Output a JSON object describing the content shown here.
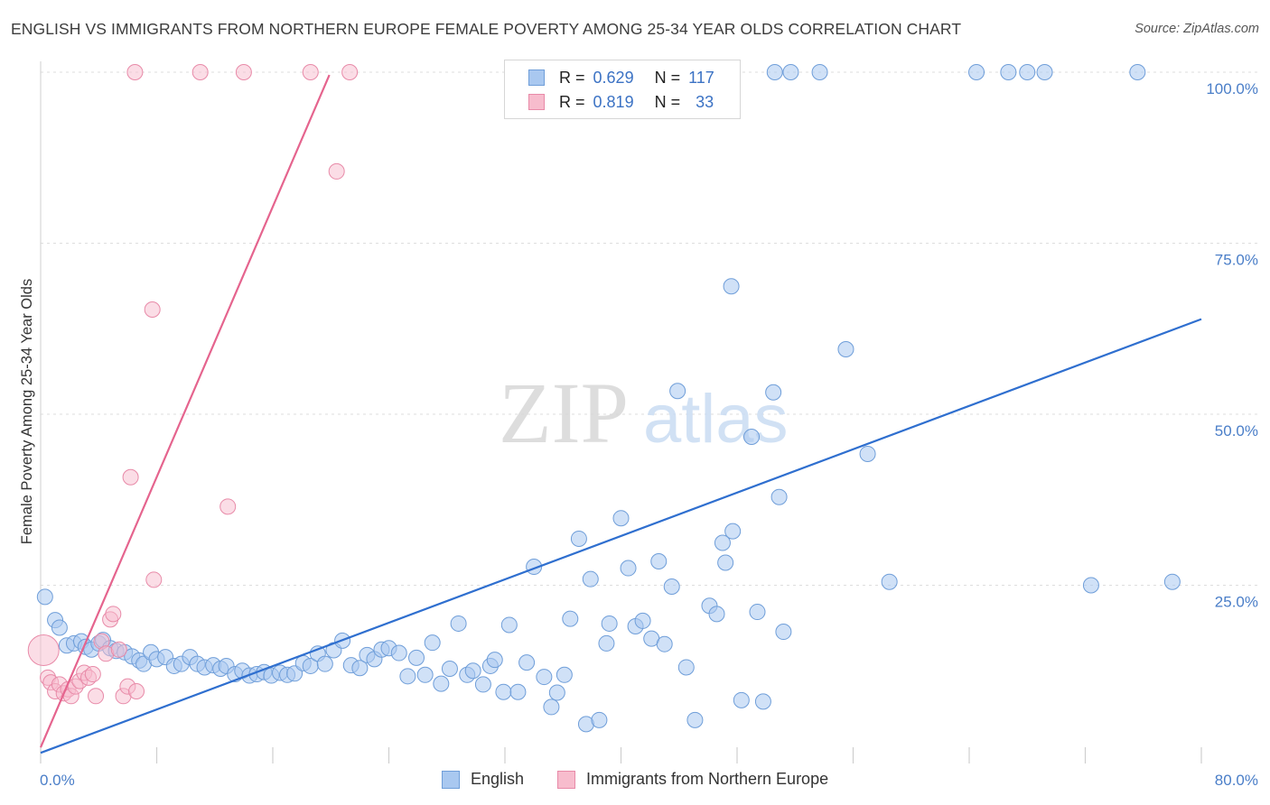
{
  "title": "ENGLISH VS IMMIGRANTS FROM NORTHERN EUROPE FEMALE POVERTY AMONG 25-34 YEAR OLDS CORRELATION CHART",
  "source": "Source: ZipAtlas.com",
  "watermark": {
    "zip": "ZIP",
    "atlas": "atlas"
  },
  "legend": {
    "rows": [
      {
        "r_label": "R =",
        "r_value": "0.629",
        "n_label": "N =",
        "n_value": "117"
      },
      {
        "r_label": "R =",
        "r_value": "0.819",
        "n_label": "N =",
        "n_value": "33"
      }
    ]
  },
  "bottom_legend": {
    "english": "English",
    "immigrants": "Immigrants from Northern Europe"
  },
  "colors": {
    "blue_fill": "#a9c8f0",
    "blue_line": "#2f6fcf",
    "pink_fill": "#f7bccd",
    "pink_line": "#e5648e",
    "tick": "#4a7ec8"
  },
  "chart_data": {
    "type": "scatter",
    "ylabel": "Female Poverty Among 25-34 Year Olds",
    "xlim": [
      0,
      80
    ],
    "ylim": [
      0,
      100
    ],
    "x_tick_labels": [
      "0.0%",
      "80.0%"
    ],
    "y_ticks": [
      25,
      50,
      75,
      100
    ],
    "y_tick_labels": [
      "25.0%",
      "50.0%",
      "75.0%",
      "100.0%"
    ],
    "series": [
      {
        "name": "English",
        "color": "#a9c8f0",
        "trend": {
          "x": [
            0,
            80
          ],
          "y": [
            0.5,
            63.9
          ]
        },
        "points": [
          [
            0.3,
            23.3
          ],
          [
            1.0,
            19.9
          ],
          [
            1.3,
            18.8
          ],
          [
            1.8,
            16.2
          ],
          [
            2.3,
            16.5
          ],
          [
            2.8,
            16.8
          ],
          [
            3.1,
            16.0
          ],
          [
            3.5,
            15.6
          ],
          [
            4.0,
            16.5
          ],
          [
            4.3,
            17.0
          ],
          [
            4.8,
            15.8
          ],
          [
            5.2,
            15.4
          ],
          [
            5.8,
            15.2
          ],
          [
            6.3,
            14.6
          ],
          [
            6.8,
            14.0
          ],
          [
            7.1,
            13.5
          ],
          [
            7.6,
            15.2
          ],
          [
            8.0,
            14.2
          ],
          [
            8.6,
            14.5
          ],
          [
            9.2,
            13.2
          ],
          [
            9.7,
            13.5
          ],
          [
            10.3,
            14.5
          ],
          [
            10.8,
            13.5
          ],
          [
            11.3,
            13.0
          ],
          [
            11.9,
            13.3
          ],
          [
            12.4,
            12.8
          ],
          [
            12.8,
            13.2
          ],
          [
            13.4,
            12.0
          ],
          [
            13.9,
            12.5
          ],
          [
            14.4,
            11.8
          ],
          [
            14.9,
            12.0
          ],
          [
            15.4,
            12.3
          ],
          [
            15.9,
            11.8
          ],
          [
            16.5,
            12.2
          ],
          [
            17.0,
            11.9
          ],
          [
            17.5,
            12.1
          ],
          [
            18.1,
            13.6
          ],
          [
            18.6,
            13.2
          ],
          [
            19.1,
            15.0
          ],
          [
            19.6,
            13.5
          ],
          [
            20.2,
            15.5
          ],
          [
            20.8,
            16.9
          ],
          [
            21.4,
            13.3
          ],
          [
            22.0,
            12.9
          ],
          [
            22.5,
            14.8
          ],
          [
            23.0,
            14.2
          ],
          [
            23.5,
            15.6
          ],
          [
            24.0,
            15.8
          ],
          [
            24.7,
            15.1
          ],
          [
            25.3,
            11.7
          ],
          [
            25.9,
            14.4
          ],
          [
            26.5,
            11.9
          ],
          [
            27.0,
            16.6
          ],
          [
            27.6,
            10.6
          ],
          [
            28.2,
            12.8
          ],
          [
            28.8,
            19.4
          ],
          [
            29.4,
            11.9
          ],
          [
            29.8,
            12.5
          ],
          [
            30.5,
            10.5
          ],
          [
            31.0,
            13.2
          ],
          [
            31.3,
            14.1
          ],
          [
            31.9,
            9.4
          ],
          [
            32.3,
            19.2
          ],
          [
            32.9,
            9.4
          ],
          [
            33.5,
            13.7
          ],
          [
            34.0,
            27.7
          ],
          [
            34.7,
            11.6
          ],
          [
            35.2,
            7.2
          ],
          [
            35.6,
            9.3
          ],
          [
            36.1,
            11.9
          ],
          [
            36.5,
            20.1
          ],
          [
            37.1,
            31.8
          ],
          [
            37.6,
            4.7
          ],
          [
            37.9,
            25.9
          ],
          [
            38.5,
            5.3
          ],
          [
            39.0,
            16.5
          ],
          [
            39.2,
            19.4
          ],
          [
            40.0,
            34.8
          ],
          [
            40.5,
            27.5
          ],
          [
            41.0,
            19.0
          ],
          [
            41.5,
            19.8
          ],
          [
            42.1,
            17.2
          ],
          [
            42.6,
            28.5
          ],
          [
            43.0,
            16.4
          ],
          [
            43.5,
            24.8
          ],
          [
            43.9,
            53.4
          ],
          [
            44.5,
            13.0
          ],
          [
            45.1,
            5.3
          ],
          [
            46.1,
            22.0
          ],
          [
            46.6,
            20.8
          ],
          [
            47.0,
            31.2
          ],
          [
            47.2,
            28.3
          ],
          [
            47.6,
            68.7
          ],
          [
            47.7,
            32.9
          ],
          [
            48.3,
            8.2
          ],
          [
            49.0,
            46.7
          ],
          [
            49.4,
            21.1
          ],
          [
            49.8,
            8.0
          ],
          [
            50.5,
            53.2
          ],
          [
            50.9,
            37.9
          ],
          [
            51.2,
            18.2
          ],
          [
            55.5,
            59.5
          ],
          [
            57.0,
            44.2
          ],
          [
            58.5,
            25.5
          ],
          [
            72.4,
            25.0
          ],
          [
            78.0,
            25.5
          ],
          [
            50.6,
            100
          ],
          [
            51.7,
            100
          ],
          [
            53.7,
            100
          ],
          [
            64.5,
            100
          ],
          [
            66.7,
            100
          ],
          [
            68.0,
            100
          ],
          [
            69.2,
            100
          ],
          [
            75.6,
            100
          ]
        ]
      },
      {
        "name": "Immigrants from Northern Europe",
        "color": "#f7bccd",
        "trend": {
          "x": [
            0,
            19.9
          ],
          "y": [
            1.3,
            99.6
          ]
        },
        "points": [
          [
            0.2,
            15.5
          ],
          [
            0.5,
            11.5
          ],
          [
            0.7,
            10.8
          ],
          [
            1.0,
            9.5
          ],
          [
            1.3,
            10.5
          ],
          [
            1.6,
            9.2
          ],
          [
            1.9,
            9.8
          ],
          [
            2.1,
            8.8
          ],
          [
            2.4,
            10.2
          ],
          [
            2.7,
            11.0
          ],
          [
            3.0,
            12.2
          ],
          [
            3.3,
            11.5
          ],
          [
            3.6,
            12.0
          ],
          [
            3.8,
            8.8
          ],
          [
            4.2,
            16.8
          ],
          [
            4.5,
            15.0
          ],
          [
            4.8,
            20.0
          ],
          [
            5.0,
            20.8
          ],
          [
            5.4,
            15.6
          ],
          [
            5.7,
            8.8
          ],
          [
            6.0,
            10.2
          ],
          [
            6.2,
            40.8
          ],
          [
            6.6,
            9.5
          ],
          [
            7.7,
            65.3
          ],
          [
            7.8,
            25.8
          ],
          [
            12.9,
            36.5
          ],
          [
            20.4,
            85.5
          ],
          [
            6.5,
            100
          ],
          [
            11.0,
            100
          ],
          [
            14.0,
            100
          ],
          [
            18.6,
            100
          ],
          [
            21.3,
            100
          ]
        ]
      }
    ]
  }
}
